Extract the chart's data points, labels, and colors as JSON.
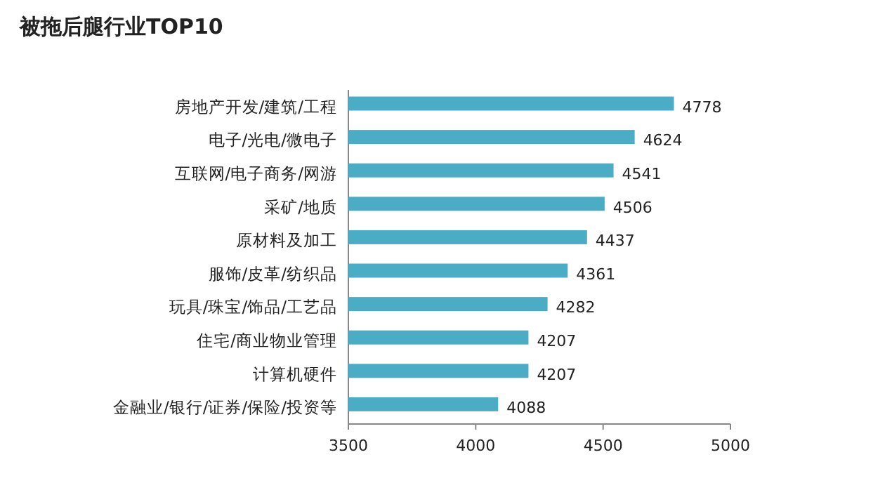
{
  "chart_data": {
    "type": "bar",
    "orientation": "horizontal",
    "title": "被拖后腿行业TOP10",
    "categories": [
      "房地产开发/建筑/工程",
      "电子/光电/微电子",
      "互联网/电子商务/网游",
      "采矿/地质",
      "原材料及加工",
      "服饰/皮革/纺织品",
      "玩具/珠宝/饰品/工艺品",
      "住宅/商业物业管理",
      "计算机硬件",
      "金融业/银行/证券/保险/投资等"
    ],
    "values": [
      4778,
      4624,
      4541,
      4506,
      4437,
      4361,
      4282,
      4207,
      4207,
      4088
    ],
    "color": "#4bacc6",
    "xlim": [
      3500,
      5000
    ],
    "xticks": [
      3500,
      4000,
      4500,
      5000
    ],
    "data_labels": true
  }
}
